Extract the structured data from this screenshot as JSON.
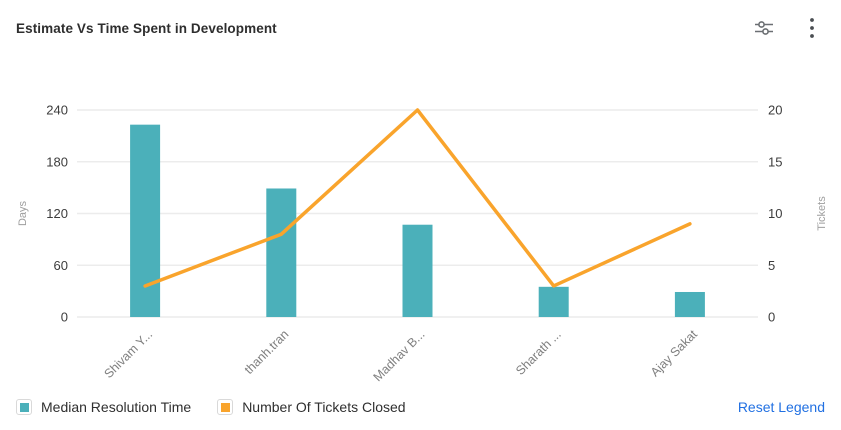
{
  "header": {
    "title": "Estimate Vs Time Spent in Development",
    "icons": [
      {
        "name": "sliders-icon"
      },
      {
        "name": "kebab-menu-icon"
      }
    ]
  },
  "chart_data": {
    "type": "bar",
    "subtype": "combo-bar-line",
    "title": "Estimate Vs Time Spent in Development",
    "categories": [
      "Shivam Y...",
      "thanh.tran",
      "Madhav B...",
      "Sharath ...",
      "Ajay Sakat"
    ],
    "series": [
      {
        "name": "Median Resolution Time",
        "type": "bar",
        "axis": "left",
        "color": "#4bb0ba",
        "values": [
          223,
          149,
          107,
          35,
          29
        ]
      },
      {
        "name": "Number Of Tickets Closed",
        "type": "line",
        "axis": "right",
        "color": "#f9a42c",
        "values": [
          3,
          8,
          20,
          3,
          9
        ]
      }
    ],
    "left_axis": {
      "label": "Days",
      "ticks": [
        0,
        60,
        120,
        180,
        240
      ],
      "lim": [
        0,
        240
      ]
    },
    "right_axis": {
      "label": "Tickets",
      "ticks": [
        0,
        5,
        10,
        15,
        20
      ],
      "lim": [
        0,
        20
      ]
    },
    "grid": true,
    "legend_position": "bottom"
  },
  "legend": {
    "items": [
      {
        "label": "Median Resolution Time",
        "color": "#4bb0ba"
      },
      {
        "label": "Number Of Tickets Closed",
        "color": "#f9a42c"
      }
    ],
    "reset_label": "Reset Legend"
  },
  "colors": {
    "bar": "#4bb0ba",
    "line": "#f9a42c",
    "link": "#2170e2",
    "grid": "#ececec",
    "tick_text": "#3d3d3d",
    "category_text": "#7f7f7f",
    "axis_name_text": "#9e9e9e",
    "icon": "#5f6368"
  }
}
